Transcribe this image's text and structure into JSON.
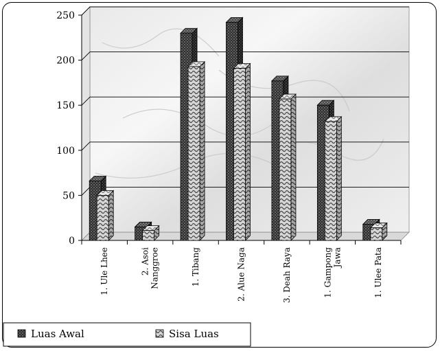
{
  "chart_data": {
    "type": "bar",
    "style": "3d-clustered-column",
    "categories": [
      "1. Ule Lhee",
      "2. Asoi Nanggroe",
      "1. Tibang",
      "2. Alue Naga",
      "3. Deah Raya",
      "1. Gampong Jawa",
      "1. Ulee Pata"
    ],
    "category_lines": [
      [
        "1. Ule Lhee"
      ],
      [
        "2. Asoi",
        "Nanggroe"
      ],
      [
        "1. Tibang"
      ],
      [
        "2. Alue Naga"
      ],
      [
        "3. Deah Raya"
      ],
      [
        "1. Gampong",
        "Jawa"
      ],
      [
        "1. Ulee Pata"
      ]
    ],
    "series": [
      {
        "name": "Luas Awal",
        "values": [
          66,
          15,
          230,
          242,
          177,
          150,
          18
        ],
        "color": "#3a3a3a",
        "pattern": "dots"
      },
      {
        "name": "Sisa Luas",
        "values": [
          53,
          14,
          196,
          194,
          160,
          135,
          17
        ],
        "color": "#bdbdbd",
        "pattern": "waves"
      }
    ],
    "yticks": [
      0,
      50,
      100,
      150,
      200,
      250
    ],
    "ylim": [
      0,
      250
    ],
    "grid": true,
    "legend": "bottom-left",
    "background": "marble"
  }
}
